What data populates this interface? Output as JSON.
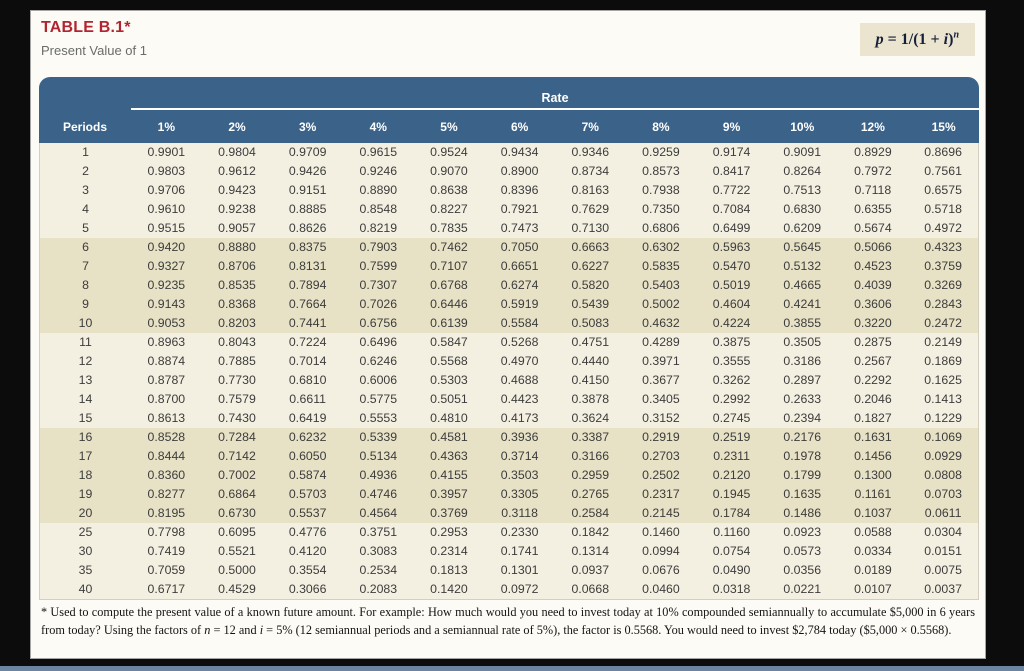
{
  "title": "TABLE B.1*",
  "subtitle": "Present Value of 1",
  "formula": {
    "segments": [
      {
        "text": "p",
        "style": "italic"
      },
      {
        "text": " = 1/(1 + ",
        "style": "normal"
      },
      {
        "text": "i",
        "style": "italic"
      },
      {
        "text": ")",
        "style": "normal"
      },
      {
        "text": "n",
        "style": "sup"
      }
    ]
  },
  "colors": {
    "header_blue": "#3b6389",
    "title_red": "#b32431",
    "row_cream": "#f4f0e1",
    "row_tan": "#e7e1c6",
    "formula_bg": "#ebe4ce"
  },
  "chart_data": {
    "type": "table",
    "title": "Present Value of 1",
    "group_header": "Rate",
    "columns": [
      "Periods",
      "1%",
      "2%",
      "3%",
      "4%",
      "5%",
      "6%",
      "7%",
      "8%",
      "9%",
      "10%",
      "12%",
      "15%"
    ],
    "rows": [
      {
        "period": "1",
        "values": [
          "0.9901",
          "0.9804",
          "0.9709",
          "0.9615",
          "0.9524",
          "0.9434",
          "0.9346",
          "0.9259",
          "0.9174",
          "0.9091",
          "0.8929",
          "0.8696"
        ]
      },
      {
        "period": "2",
        "values": [
          "0.9803",
          "0.9612",
          "0.9426",
          "0.9246",
          "0.9070",
          "0.8900",
          "0.8734",
          "0.8573",
          "0.8417",
          "0.8264",
          "0.7972",
          "0.7561"
        ]
      },
      {
        "period": "3",
        "values": [
          "0.9706",
          "0.9423",
          "0.9151",
          "0.8890",
          "0.8638",
          "0.8396",
          "0.8163",
          "0.7938",
          "0.7722",
          "0.7513",
          "0.7118",
          "0.6575"
        ]
      },
      {
        "period": "4",
        "values": [
          "0.9610",
          "0.9238",
          "0.8885",
          "0.8548",
          "0.8227",
          "0.7921",
          "0.7629",
          "0.7350",
          "0.7084",
          "0.6830",
          "0.6355",
          "0.5718"
        ]
      },
      {
        "period": "5",
        "values": [
          "0.9515",
          "0.9057",
          "0.8626",
          "0.8219",
          "0.7835",
          "0.7473",
          "0.7130",
          "0.6806",
          "0.6499",
          "0.6209",
          "0.5674",
          "0.4972"
        ]
      },
      {
        "period": "6",
        "values": [
          "0.9420",
          "0.8880",
          "0.8375",
          "0.7903",
          "0.7462",
          "0.7050",
          "0.6663",
          "0.6302",
          "0.5963",
          "0.5645",
          "0.5066",
          "0.4323"
        ]
      },
      {
        "period": "7",
        "values": [
          "0.9327",
          "0.8706",
          "0.8131",
          "0.7599",
          "0.7107",
          "0.6651",
          "0.6227",
          "0.5835",
          "0.5470",
          "0.5132",
          "0.4523",
          "0.3759"
        ]
      },
      {
        "period": "8",
        "values": [
          "0.9235",
          "0.8535",
          "0.7894",
          "0.7307",
          "0.6768",
          "0.6274",
          "0.5820",
          "0.5403",
          "0.5019",
          "0.4665",
          "0.4039",
          "0.3269"
        ]
      },
      {
        "period": "9",
        "values": [
          "0.9143",
          "0.8368",
          "0.7664",
          "0.7026",
          "0.6446",
          "0.5919",
          "0.5439",
          "0.5002",
          "0.4604",
          "0.4241",
          "0.3606",
          "0.2843"
        ]
      },
      {
        "period": "10",
        "values": [
          "0.9053",
          "0.8203",
          "0.7441",
          "0.6756",
          "0.6139",
          "0.5584",
          "0.5083",
          "0.4632",
          "0.4224",
          "0.3855",
          "0.3220",
          "0.2472"
        ]
      },
      {
        "period": "11",
        "values": [
          "0.8963",
          "0.8043",
          "0.7224",
          "0.6496",
          "0.5847",
          "0.5268",
          "0.4751",
          "0.4289",
          "0.3875",
          "0.3505",
          "0.2875",
          "0.2149"
        ]
      },
      {
        "period": "12",
        "values": [
          "0.8874",
          "0.7885",
          "0.7014",
          "0.6246",
          "0.5568",
          "0.4970",
          "0.4440",
          "0.3971",
          "0.3555",
          "0.3186",
          "0.2567",
          "0.1869"
        ]
      },
      {
        "period": "13",
        "values": [
          "0.8787",
          "0.7730",
          "0.6810",
          "0.6006",
          "0.5303",
          "0.4688",
          "0.4150",
          "0.3677",
          "0.3262",
          "0.2897",
          "0.2292",
          "0.1625"
        ]
      },
      {
        "period": "14",
        "values": [
          "0.8700",
          "0.7579",
          "0.6611",
          "0.5775",
          "0.5051",
          "0.4423",
          "0.3878",
          "0.3405",
          "0.2992",
          "0.2633",
          "0.2046",
          "0.1413"
        ]
      },
      {
        "period": "15",
        "values": [
          "0.8613",
          "0.7430",
          "0.6419",
          "0.5553",
          "0.4810",
          "0.4173",
          "0.3624",
          "0.3152",
          "0.2745",
          "0.2394",
          "0.1827",
          "0.1229"
        ]
      },
      {
        "period": "16",
        "values": [
          "0.8528",
          "0.7284",
          "0.6232",
          "0.5339",
          "0.4581",
          "0.3936",
          "0.3387",
          "0.2919",
          "0.2519",
          "0.2176",
          "0.1631",
          "0.1069"
        ]
      },
      {
        "period": "17",
        "values": [
          "0.8444",
          "0.7142",
          "0.6050",
          "0.5134",
          "0.4363",
          "0.3714",
          "0.3166",
          "0.2703",
          "0.2311",
          "0.1978",
          "0.1456",
          "0.0929"
        ]
      },
      {
        "period": "18",
        "values": [
          "0.8360",
          "0.7002",
          "0.5874",
          "0.4936",
          "0.4155",
          "0.3503",
          "0.2959",
          "0.2502",
          "0.2120",
          "0.1799",
          "0.1300",
          "0.0808"
        ]
      },
      {
        "period": "19",
        "values": [
          "0.8277",
          "0.6864",
          "0.5703",
          "0.4746",
          "0.3957",
          "0.3305",
          "0.2765",
          "0.2317",
          "0.1945",
          "0.1635",
          "0.1161",
          "0.0703"
        ]
      },
      {
        "period": "20",
        "values": [
          "0.8195",
          "0.6730",
          "0.5537",
          "0.4564",
          "0.3769",
          "0.3118",
          "0.2584",
          "0.2145",
          "0.1784",
          "0.1486",
          "0.1037",
          "0.0611"
        ]
      },
      {
        "period": "25",
        "values": [
          "0.7798",
          "0.6095",
          "0.4776",
          "0.3751",
          "0.2953",
          "0.2330",
          "0.1842",
          "0.1460",
          "0.1160",
          "0.0923",
          "0.0588",
          "0.0304"
        ]
      },
      {
        "period": "30",
        "values": [
          "0.7419",
          "0.5521",
          "0.4120",
          "0.3083",
          "0.2314",
          "0.1741",
          "0.1314",
          "0.0994",
          "0.0754",
          "0.0573",
          "0.0334",
          "0.0151"
        ]
      },
      {
        "period": "35",
        "values": [
          "0.7059",
          "0.5000",
          "0.3554",
          "0.2534",
          "0.1813",
          "0.1301",
          "0.0937",
          "0.0676",
          "0.0490",
          "0.0356",
          "0.0189",
          "0.0075"
        ]
      },
      {
        "period": "40",
        "values": [
          "0.6717",
          "0.4529",
          "0.3066",
          "0.2083",
          "0.1420",
          "0.0972",
          "0.0668",
          "0.0460",
          "0.0318",
          "0.0221",
          "0.0107",
          "0.0037"
        ]
      }
    ],
    "shaded_period_bands": [
      [
        6,
        10
      ],
      [
        16,
        20
      ]
    ]
  },
  "footnote": {
    "segments": [
      {
        "text": "* Used to compute the present value of a known future amount. For example: How much would you need to invest today at 10% compounded semiannually to accumulate $5,000 in 6 years from today? Using the factors of ",
        "style": "normal"
      },
      {
        "text": "n",
        "style": "italic"
      },
      {
        "text": " = 12 and ",
        "style": "normal"
      },
      {
        "text": "i",
        "style": "italic"
      },
      {
        "text": " = 5% (12 semiannual periods and a semiannual rate of 5%), the factor is 0.5568. You would need to invest $2,784 today ($5,000 × 0.5568).",
        "style": "normal"
      }
    ]
  }
}
